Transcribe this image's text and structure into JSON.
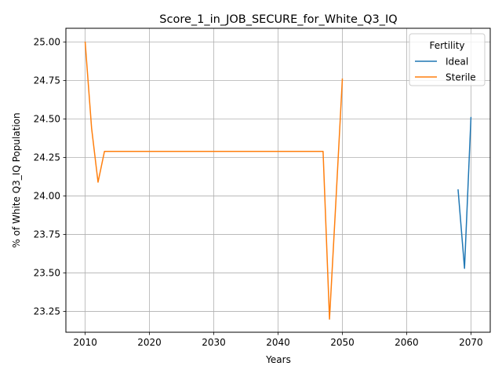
{
  "chart_data": {
    "type": "line",
    "title": "Score_1_in_JOB_SECURE_for_White_Q3_IQ",
    "xlabel": "Years",
    "ylabel": "% of White Q3_IQ Population",
    "xlim": [
      2007,
      2073
    ],
    "ylim": [
      23.115,
      25.09
    ],
    "x_ticks": [
      2010,
      2020,
      2030,
      2040,
      2050,
      2060,
      2070
    ],
    "y_ticks": [
      23.25,
      23.5,
      23.75,
      24.0,
      24.25,
      24.5,
      24.75,
      25.0
    ],
    "grid": true,
    "legend": {
      "title": "Fertility",
      "placement": "top-right"
    },
    "series": [
      {
        "name": "Ideal",
        "color": "#1f77b4",
        "x": [
          2068,
          2069,
          2070
        ],
        "y": [
          24.04,
          23.53,
          24.51
        ]
      },
      {
        "name": "Sterile",
        "color": "#ff7f0e",
        "x": [
          2010,
          2011,
          2012,
          2013,
          2014,
          2015,
          2016,
          2017,
          2018,
          2019,
          2020,
          2021,
          2022,
          2023,
          2024,
          2025,
          2026,
          2027,
          2028,
          2029,
          2030,
          2031,
          2032,
          2033,
          2034,
          2035,
          2036,
          2037,
          2038,
          2039,
          2040,
          2041,
          2042,
          2043,
          2044,
          2045,
          2046,
          2047,
          2048,
          2049,
          2050
        ],
        "y": [
          25.0,
          24.44,
          24.09,
          24.29,
          24.29,
          24.29,
          24.29,
          24.29,
          24.29,
          24.29,
          24.29,
          24.29,
          24.29,
          24.29,
          24.29,
          24.29,
          24.29,
          24.29,
          24.29,
          24.29,
          24.29,
          24.29,
          24.29,
          24.29,
          24.29,
          24.29,
          24.29,
          24.29,
          24.29,
          24.29,
          24.29,
          24.29,
          24.29,
          24.29,
          24.29,
          24.29,
          24.29,
          24.29,
          23.2,
          23.97,
          24.76
        ]
      }
    ]
  }
}
